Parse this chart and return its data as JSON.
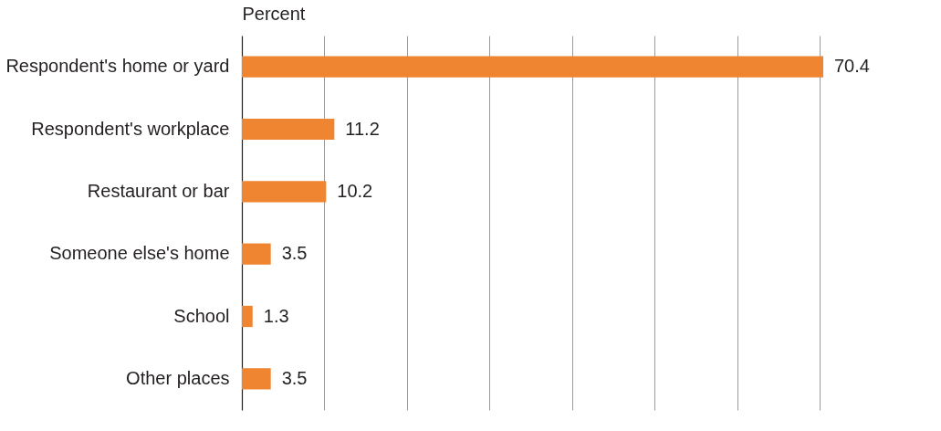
{
  "chart_data": {
    "type": "bar",
    "orientation": "horizontal",
    "xlabel": "Percent",
    "categories": [
      "Respondent's home or yard",
      "Respondent's workplace",
      "Restaurant or bar",
      "Someone else's home",
      "School",
      "Other places"
    ],
    "values": [
      70.4,
      11.2,
      10.2,
      3.5,
      1.3,
      3.5
    ],
    "color": "#ef8431",
    "data_labels": true,
    "xticks": [
      {
        "value": 10,
        "label": null
      },
      {
        "value": 20,
        "label": null
      },
      {
        "value": 30,
        "label": null
      },
      {
        "value": 40,
        "label": null
      },
      {
        "value": 50,
        "label": null
      },
      {
        "value": 60,
        "label": null
      },
      {
        "value": 70,
        "label": null
      }
    ],
    "grid": "x",
    "tick_labels": "y"
  }
}
